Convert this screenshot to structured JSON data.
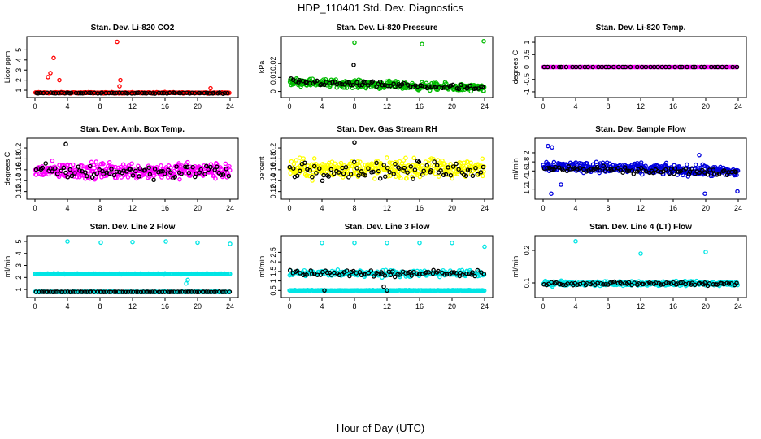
{
  "figure": {
    "title": "HDP_110401  Std. Dev. Diagnostics",
    "xlabel": "Hour of Day (UTC)"
  },
  "chart_data": [
    {
      "type": "scatter",
      "title": "Stan. Dev. Li-820 CO2",
      "ylabel": "Licor ppm",
      "xlim": [
        0,
        24
      ],
      "ylim": [
        0.6,
        6.0
      ],
      "xticks": [
        "0",
        "4",
        "8",
        "12",
        "16",
        "20",
        "24"
      ],
      "yticks": [
        1,
        2,
        3,
        4,
        5
      ],
      "series": [
        {
          "name": "primary",
          "color": "#ff0000",
          "base": 0.75,
          "spread": 0.08,
          "count": 220,
          "outliers": [
            [
              1.6,
              2.3
            ],
            [
              1.9,
              2.7
            ],
            [
              2.3,
              4.2
            ],
            [
              3.0,
              2.0
            ],
            [
              10.1,
              5.8
            ],
            [
              10.4,
              1.4
            ],
            [
              10.5,
              2.0
            ],
            [
              21.6,
              1.2
            ]
          ]
        },
        {
          "name": "secondary",
          "color": "#000000",
          "base": 0.72,
          "spread": 0.06,
          "count": 70,
          "outliers": []
        }
      ]
    },
    {
      "type": "scatter",
      "title": "Stan. Dev. Li-820 Pressure",
      "ylabel": "kPa",
      "xlim": [
        0,
        24
      ],
      "ylim": [
        -0.002,
        0.037
      ],
      "xticks": [
        "0",
        "4",
        "8",
        "12",
        "16",
        "20",
        "24"
      ],
      "yticks": [
        0.0,
        0.01,
        0.02
      ],
      "series": [
        {
          "name": "primary",
          "color": "#00bb00",
          "base": 0.007,
          "trend": -0.0002,
          "spread": 0.004,
          "count": 320,
          "outliers": [
            [
              8.0,
              0.035
            ],
            [
              16.3,
              0.034
            ],
            [
              23.9,
              0.036
            ]
          ]
        },
        {
          "name": "secondary",
          "color": "#000000",
          "base": 0.007,
          "trend": -0.0002,
          "spread": 0.003,
          "count": 80,
          "outliers": [
            [
              7.9,
              0.019
            ]
          ]
        }
      ]
    },
    {
      "type": "scatter",
      "title": "Stan. Dev. Li-820 Temp.",
      "ylabel": "degrees C",
      "xlim": [
        0,
        24
      ],
      "ylim": [
        -1.1,
        1.1
      ],
      "xticks": [
        "0",
        "4",
        "8",
        "12",
        "16",
        "20",
        "24"
      ],
      "yticks": [
        -1.0,
        -0.5,
        0.0,
        0.5,
        1.0
      ],
      "series": [
        {
          "name": "primary",
          "color": "#ff00ff",
          "base": 0.0,
          "spread": 0.0,
          "count": 150,
          "outliers": []
        },
        {
          "name": "secondary",
          "color": "#000000",
          "base": 0.0,
          "spread": 0.0,
          "count": 45,
          "outliers": []
        }
      ]
    },
    {
      "type": "scatter",
      "title": "Stan. Dev. Amb. Box Temp.",
      "ylabel": "degrees C",
      "xlim": [
        0,
        24
      ],
      "ylim": [
        0.112,
        0.212
      ],
      "xticks": [
        "0",
        "4",
        "8",
        "12",
        "16",
        "20",
        "24"
      ],
      "yticks": [
        0.12,
        0.14,
        0.16,
        0.18,
        0.2
      ],
      "series": [
        {
          "name": "primary",
          "color": "#ff00ff",
          "base": 0.158,
          "spread": 0.022,
          "count": 330,
          "outliers": []
        },
        {
          "name": "secondary",
          "color": "#000000",
          "base": 0.157,
          "spread": 0.02,
          "count": 80,
          "outliers": [
            [
              3.8,
              0.207
            ]
          ]
        }
      ]
    },
    {
      "type": "scatter",
      "title": "Stan. Dev. Gas Stream RH",
      "ylabel": "percent",
      "xlim": [
        0,
        24
      ],
      "ylim": [
        0.112,
        0.212
      ],
      "xticks": [
        "0",
        "4",
        "8",
        "12",
        "16",
        "20",
        "24"
      ],
      "yticks": [
        0.12,
        0.14,
        0.16,
        0.18,
        0.2
      ],
      "series": [
        {
          "name": "primary",
          "color": "#ffff00",
          "base": 0.162,
          "spread": 0.025,
          "count": 330,
          "outliers": []
        },
        {
          "name": "secondary",
          "color": "#000000",
          "base": 0.16,
          "spread": 0.023,
          "count": 80,
          "outliers": [
            [
              8.0,
              0.21
            ]
          ]
        }
      ]
    },
    {
      "type": "scatter",
      "title": "Stan. Dev. Sample Flow",
      "ylabel": "ml/min",
      "xlim": [
        0,
        24
      ],
      "ylim": [
        1.05,
        2.25
      ],
      "xticks": [
        "0",
        "4",
        "8",
        "12",
        "16",
        "20",
        "24"
      ],
      "yticks": [
        1.2,
        1.4,
        1.6,
        1.8,
        2.0
      ],
      "series": [
        {
          "name": "primary",
          "color": "#0000dd",
          "base": 1.72,
          "trend": -0.006,
          "spread": 0.17,
          "count": 330,
          "outliers": [
            [
              0.6,
              2.15
            ],
            [
              1.1,
              2.12
            ],
            [
              1.0,
              1.1
            ],
            [
              2.2,
              1.3
            ],
            [
              19.2,
              1.95
            ],
            [
              19.9,
              1.1
            ],
            [
              23.9,
              1.15
            ]
          ]
        },
        {
          "name": "secondary",
          "color": "#000000",
          "base": 1.66,
          "trend": -0.004,
          "spread": 0.1,
          "count": 80,
          "outliers": []
        }
      ]
    },
    {
      "type": "scatter",
      "title": "Stan. Dev. Line 2 Flow",
      "ylabel": "ml/min",
      "xlim": [
        0,
        24
      ],
      "ylim": [
        0.6,
        5.2
      ],
      "xticks": [
        "0",
        "4",
        "8",
        "12",
        "16",
        "20",
        "24"
      ],
      "yticks": [
        1,
        2,
        3,
        4,
        5
      ],
      "series": [
        {
          "name": "upper",
          "color": "#00e5e5",
          "base": 2.3,
          "spread": 0.05,
          "count": 250,
          "outliers": [
            [
              4.0,
              5.0
            ],
            [
              8.1,
              4.9
            ],
            [
              12.0,
              4.95
            ],
            [
              16.1,
              5.0
            ],
            [
              20.0,
              4.9
            ],
            [
              24.0,
              4.8
            ],
            [
              18.6,
              1.5
            ],
            [
              18.8,
              1.8
            ]
          ]
        },
        {
          "name": "lower",
          "color": "#00e5e5",
          "base": 0.8,
          "spread": 0.03,
          "count": 250,
          "outliers": []
        },
        {
          "name": "secondary",
          "color": "#000000",
          "base": 0.8,
          "spread": 0.02,
          "count": 80,
          "outliers": []
        }
      ]
    },
    {
      "type": "scatter",
      "title": "Stan. Dev. Line 3 Flow",
      "ylabel": "ml/min",
      "xlim": [
        0,
        24
      ],
      "ylim": [
        0.3,
        3.2
      ],
      "xticks": [
        "0",
        "4",
        "8",
        "12",
        "16",
        "20",
        "24"
      ],
      "yticks": [
        0.5,
        1.0,
        1.5,
        2.0,
        2.5
      ],
      "series": [
        {
          "name": "upper",
          "color": "#00e5e5",
          "base": 1.4,
          "spread": 0.25,
          "count": 220,
          "outliers": [
            [
              4.0,
              3.0
            ],
            [
              8.0,
              3.0
            ],
            [
              12.0,
              3.0
            ],
            [
              16.0,
              3.0
            ],
            [
              20.0,
              3.0
            ],
            [
              24.0,
              2.8
            ]
          ]
        },
        {
          "name": "lower",
          "color": "#00e5e5",
          "base": 0.5,
          "spread": 0.03,
          "count": 250,
          "outliers": []
        },
        {
          "name": "secondary",
          "color": "#000000",
          "base": 1.4,
          "spread": 0.25,
          "count": 80,
          "outliers": [
            [
              4.3,
              0.5
            ],
            [
              11.6,
              0.7
            ],
            [
              12.0,
              0.5
            ]
          ]
        }
      ]
    },
    {
      "type": "scatter",
      "title": "Stan. Dev. Line 4 (LT) Flow",
      "ylabel": "ml/min",
      "xlim": [
        0,
        24
      ],
      "ylim": [
        0.065,
        0.235
      ],
      "xticks": [
        "0",
        "4",
        "8",
        "12",
        "16",
        "20",
        "24"
      ],
      "yticks": [
        0.1,
        0.2
      ],
      "series": [
        {
          "name": "primary",
          "color": "#00e5e5",
          "base": 0.098,
          "spread": 0.01,
          "count": 320,
          "outliers": [
            [
              4.0,
              0.228
            ],
            [
              12.0,
              0.19
            ],
            [
              20.0,
              0.195
            ]
          ]
        },
        {
          "name": "secondary",
          "color": "#000000",
          "base": 0.098,
          "spread": 0.008,
          "count": 80,
          "outliers": []
        }
      ]
    }
  ]
}
